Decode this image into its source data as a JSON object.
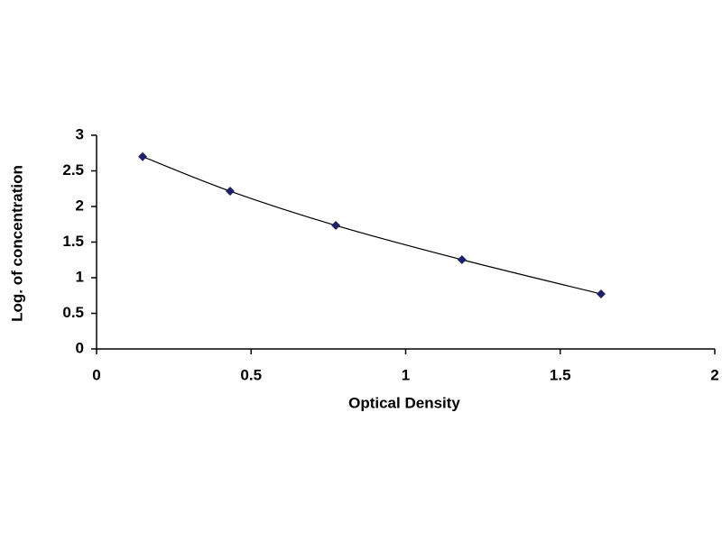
{
  "chart_data": {
    "type": "line",
    "smooth": true,
    "marker": "diamond",
    "x_label": "Optical Density",
    "y_label": "Log. of concentration",
    "series": [
      {
        "color": "#1f1f6b",
        "line_color": "#000000",
        "x": [
          0.149,
          0.432,
          0.774,
          1.182,
          1.632
        ],
        "values": [
          2.7,
          2.215,
          1.734,
          1.253,
          0.772
        ]
      }
    ],
    "xlim": [
      0,
      2
    ],
    "xticks": [
      0,
      0.5,
      1,
      1.5,
      2
    ],
    "ylim": [
      0,
      3
    ],
    "yticks": [
      0,
      0.5,
      1,
      1.5,
      2,
      2.5,
      3
    ],
    "grid": false
  }
}
